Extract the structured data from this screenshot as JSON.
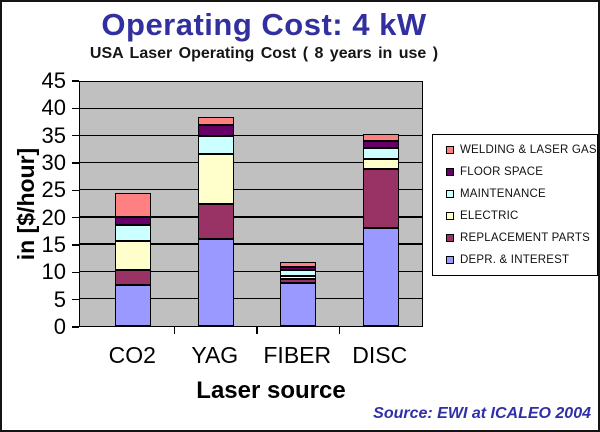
{
  "page": {
    "title": "Operating Cost: 4 kW",
    "title_color": "#31309E",
    "source": "Source: EWI at ICALEO 2004",
    "source_color": "#2F2FA8"
  },
  "chart_data": {
    "type": "bar",
    "stacked": true,
    "title": "USA Laser Operating Cost ( 8 years in use )",
    "xlabel": "Laser source",
    "ylabel": "in [$/hour]",
    "ylim": [
      0,
      45
    ],
    "ytick_step": 5,
    "yticks": [
      0,
      5,
      10,
      15,
      20,
      25,
      30,
      35,
      40,
      45
    ],
    "grid": true,
    "plot_bg": "#C0C0C0",
    "legend_position": "right",
    "legend_order": "top-is-last-series",
    "categories": [
      "CO2",
      "YAG",
      "FIBER",
      "DISC"
    ],
    "series": [
      {
        "name": "DEPR. & INTEREST",
        "color": "#9999FF",
        "values": [
          7.5,
          16.0,
          7.9,
          18.0
        ]
      },
      {
        "name": "REPLACEMENT PARTS",
        "color": "#993366",
        "values": [
          2.9,
          6.5,
          0.8,
          11.0
        ]
      },
      {
        "name": "ELECTRIC",
        "color": "#FFFFCC",
        "values": [
          5.2,
          9.3,
          0.5,
          1.8
        ]
      },
      {
        "name": "MAINTENANCE",
        "color": "#CCFFFF",
        "values": [
          3.0,
          3.2,
          1.1,
          2.0
        ]
      },
      {
        "name": "FLOOR SPACE",
        "color": "#660066",
        "values": [
          1.6,
          2.1,
          0.6,
          1.3
        ]
      },
      {
        "name": "WELDING & LASER GAS",
        "color": "#FF8080",
        "values": [
          4.4,
          1.4,
          1.0,
          1.4
        ]
      }
    ],
    "totals": {
      "CO2": 24.6,
      "YAG": 38.5,
      "FIBER": 11.9,
      "DISC": 35.5
    }
  }
}
